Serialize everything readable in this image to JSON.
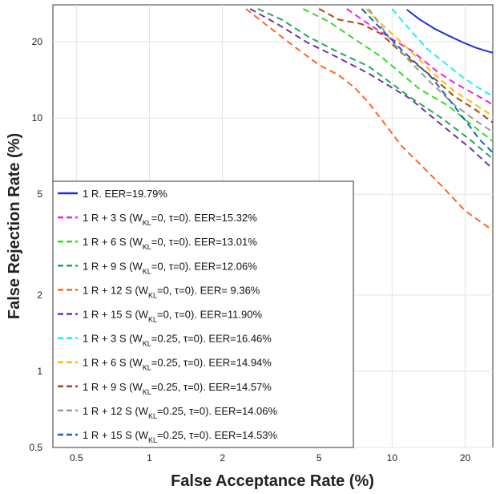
{
  "chart_data": {
    "type": "line",
    "title": "",
    "xlabel": "False Acceptance Rate (%)",
    "ylabel": "False Rejection Rate (%)",
    "xscale": "log",
    "yscale": "log",
    "xlim": [
      0.4,
      26
    ],
    "ylim": [
      0.5,
      28
    ],
    "grid": true,
    "legend_position": "bottom-left",
    "xticks": [
      0.5,
      1,
      2,
      5,
      10,
      20
    ],
    "xtick_labels": [
      "0.5",
      "1",
      "2",
      "5",
      "10",
      "20"
    ],
    "yticks": [
      0.5,
      1,
      2,
      5,
      10,
      20
    ],
    "ytick_labels": [
      "0.5",
      "1",
      "2",
      "5",
      "10",
      "20"
    ],
    "series": [
      {
        "label": "1 R. EER=19.79%",
        "label_main": "1 R. EER=19.79%",
        "label_sub": "",
        "label_tail": "",
        "color": "#1f2fdc",
        "dash": "solid",
        "x": [
          11.5,
          13,
          15,
          17,
          19.8,
          22,
          24,
          26
        ],
        "y": [
          26.8,
          24.5,
          22.5,
          21.2,
          19.8,
          19.0,
          18.5,
          18.1
        ]
      },
      {
        "label": "1 R + 3 S (WKL=0, τ=0). EER=15.32%",
        "label_main": "1 R + 3 S (W",
        "label_sub": "KL",
        "label_tail": "=0, τ=0). EER=15.32%",
        "color": "#ee22dd",
        "dash": "dashed",
        "x": [
          6.5,
          8,
          10,
          12,
          15.3,
          18,
          22,
          26
        ],
        "y": [
          27,
          23.5,
          20.5,
          18.5,
          15.3,
          13.8,
          12.4,
          11.3
        ]
      },
      {
        "label": "1 R + 6 S (WKL=0, τ=0). EER=13.01%",
        "label_main": "1 R + 6 S (W",
        "label_sub": "KL",
        "label_tail": "=0, τ=0). EER=13.01%",
        "color": "#33dd22",
        "dash": "dashed",
        "x": [
          4.3,
          5.5,
          7,
          9,
          13,
          17,
          21,
          26
        ],
        "y": [
          27,
          24,
          20.5,
          17.5,
          13,
          11.2,
          9.5,
          8.1
        ]
      },
      {
        "label": "1 R + 9 S (WKL=0, τ=0). EER=12.06%",
        "label_main": "1 R + 9 S (W",
        "label_sub": "KL",
        "label_tail": "=0, τ=0). EER=12.06%",
        "color": "#22aa55",
        "dash": "dashed",
        "x": [
          2.8,
          3.5,
          4.5,
          6,
          8,
          12,
          16,
          21,
          26
        ],
        "y": [
          27,
          24.5,
          21,
          18.2,
          16,
          12,
          10,
          8.2,
          6.9
        ]
      },
      {
        "label": "1 R + 12 S (WKL=0, τ=0). EER= 9.36%",
        "label_main": "1 R + 12 S (W",
        "label_sub": "KL",
        "label_tail": "=0, τ=0). EER= 9.36%",
        "color": "#ff6622",
        "dash": "dashed",
        "x": [
          2.5,
          3,
          4,
          5,
          6,
          7,
          8,
          9.4,
          11,
          13,
          16,
          20,
          26
        ],
        "y": [
          27,
          23.5,
          19,
          16.2,
          14.8,
          13.2,
          11.5,
          9.4,
          7.7,
          6.6,
          5.4,
          4.3,
          3.6
        ]
      },
      {
        "label": "1 R + 15 S (WKL=0, τ=0). EER=11.90%",
        "label_main": "1 R + 15 S (W",
        "label_sub": "KL",
        "label_tail": "=0, τ=0). EER=11.90%",
        "color": "#7733aa",
        "dash": "dashed",
        "x": [
          2.6,
          3.5,
          4.5,
          6,
          8,
          11.9,
          16,
          21,
          26
        ],
        "y": [
          27,
          23,
          19.8,
          17.3,
          15,
          11.9,
          9.4,
          7.6,
          6.3
        ]
      },
      {
        "label": "1 R + 3 S (WKL=0.25, τ=0). EER=16.46%",
        "label_main": "1 R + 3 S (W",
        "label_sub": "KL",
        "label_tail": "=0.25, τ=0). EER=16.46%",
        "color": "#22eeee",
        "dash": "dashed",
        "x": [
          10,
          12,
          14,
          16.5,
          19,
          22,
          26
        ],
        "y": [
          27,
          22,
          18.7,
          16.5,
          14.8,
          13.4,
          12.2
        ]
      },
      {
        "label": "1 R + 6 S (WKL=0.25, τ=0). EER=14.94%",
        "label_main": "1 R + 6 S (W",
        "label_sub": "KL",
        "label_tail": "=0.25, τ=0). EER=14.94%",
        "color": "#ffbb11",
        "dash": "dashed",
        "x": [
          7.8,
          9.5,
          11.5,
          14.9,
          18,
          22,
          26
        ],
        "y": [
          27,
          22.5,
          19,
          14.9,
          12.8,
          11.3,
          10.2
        ]
      },
      {
        "label": "1 R + 9 S (WKL=0.25, τ=0). EER=14.57%",
        "label_main": "1 R + 9 S (W",
        "label_sub": "KL",
        "label_tail": "=0.25, τ=0). EER=14.57%",
        "color": "#aa4411",
        "dash": "dashed",
        "x": [
          5,
          6,
          7.5,
          9,
          11,
          14.6,
          18,
          22,
          26
        ],
        "y": [
          27,
          24.5,
          23.5,
          21.5,
          18,
          14.6,
          12.2,
          10.8,
          9.6
        ]
      },
      {
        "label": "1 R + 12 S (WKL=0.25, τ=0). EER=14.06%",
        "label_main": "1 R + 12 S (W",
        "label_sub": "KL",
        "label_tail": "=0.25, τ=0). EER=14.06%",
        "color": "#999999",
        "dash": "dashed",
        "x": [
          8,
          10,
          12,
          14.1,
          18,
          22,
          26
        ],
        "y": [
          27,
          20,
          16.5,
          14.1,
          11.3,
          9.8,
          8.8
        ]
      },
      {
        "label": "1 R + 15 S (WKL=0.25, τ=0). EER=14.53%",
        "label_main": "1 R + 15 S (W",
        "label_sub": "KL",
        "label_tail": "=0.25, τ=0). EER=14.53%",
        "color": "#1166bb",
        "dash": "dashed",
        "x": [
          7.5,
          9,
          11,
          14.5,
          17,
          20,
          23,
          26
        ],
        "y": [
          27,
          22.5,
          18.5,
          14.5,
          12,
          9.8,
          8.2,
          7.3
        ]
      }
    ]
  }
}
